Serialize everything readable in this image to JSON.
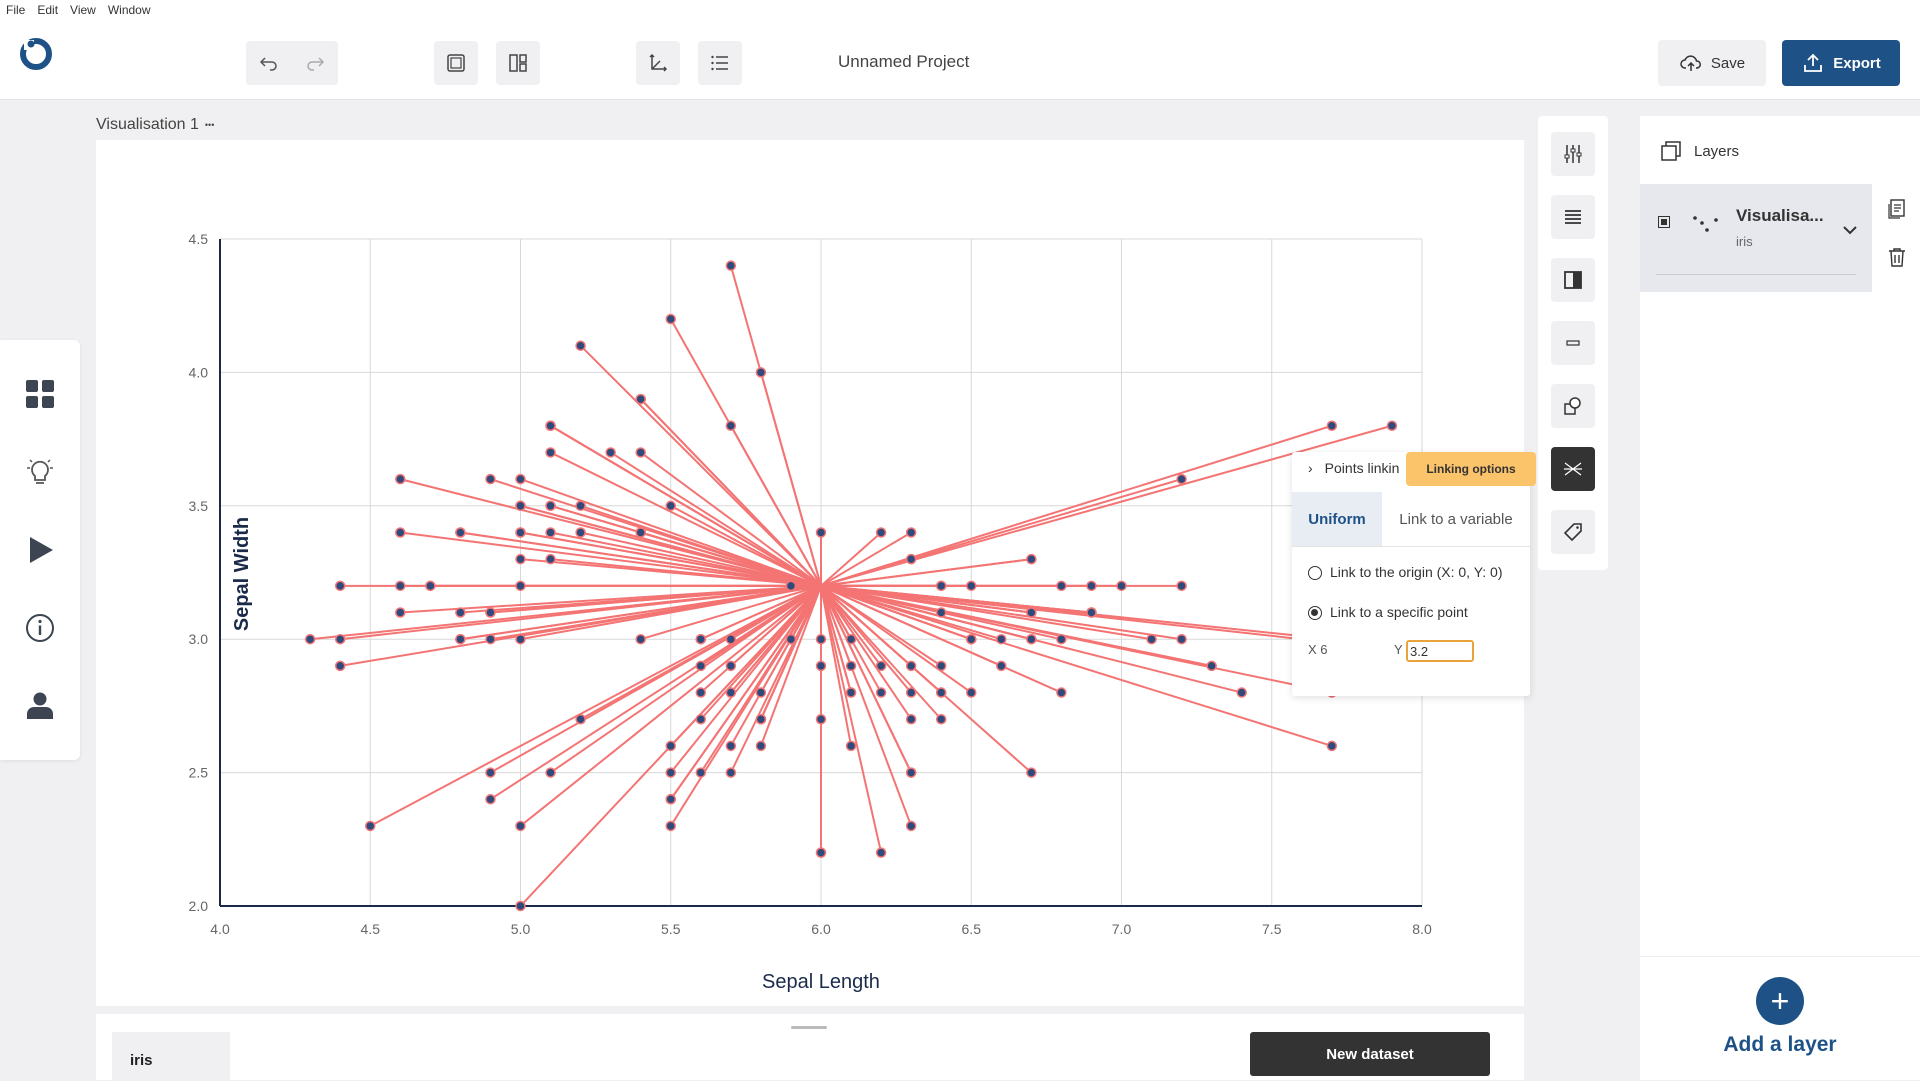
{
  "menu": [
    "File",
    "Edit",
    "View",
    "Window"
  ],
  "header": {
    "project_title": "Unnamed Project",
    "save_label": "Save",
    "export_label": "Export"
  },
  "visualisation": {
    "label": "Visualisation 1",
    "menu_dots": "•••"
  },
  "chart_data": {
    "type": "scatter",
    "xlabel": "Sepal Length",
    "ylabel": "Sepal Width",
    "xlim": [
      4.0,
      8.0
    ],
    "ylim": [
      2.0,
      4.5
    ],
    "xticks": [
      "4.0",
      "4.5",
      "5.0",
      "5.5",
      "6.0",
      "6.5",
      "7.0",
      "7.5",
      "8.0"
    ],
    "yticks": [
      "2.0",
      "2.5",
      "3.0",
      "3.5",
      "4.0",
      "4.5"
    ],
    "link_point": [
      6,
      3.2
    ],
    "point_color": "#2f4a7c",
    "link_color": "#f47474",
    "grid": true,
    "x": [
      5.1,
      4.9,
      4.7,
      4.6,
      5.0,
      5.4,
      4.6,
      5.0,
      4.4,
      4.9,
      5.4,
      4.8,
      4.8,
      4.3,
      5.8,
      5.7,
      5.4,
      5.1,
      5.7,
      5.1,
      5.4,
      5.1,
      4.6,
      5.1,
      4.8,
      5.0,
      5.0,
      5.2,
      5.2,
      4.7,
      4.8,
      5.4,
      5.2,
      5.5,
      4.9,
      5.0,
      5.5,
      4.9,
      4.4,
      5.1,
      5.0,
      4.5,
      4.4,
      5.0,
      5.1,
      4.8,
      5.1,
      4.6,
      5.3,
      5.0,
      7.0,
      6.4,
      6.9,
      5.5,
      6.5,
      5.7,
      6.3,
      4.9,
      6.6,
      5.2,
      5.0,
      5.9,
      6.0,
      6.1,
      5.6,
      6.7,
      5.6,
      5.8,
      6.2,
      5.6,
      5.9,
      6.1,
      6.3,
      6.1,
      6.4,
      6.6,
      6.8,
      6.7,
      6.0,
      5.7,
      5.5,
      5.5,
      5.8,
      6.0,
      5.4,
      6.0,
      6.7,
      6.3,
      5.6,
      5.5,
      5.5,
      6.1,
      5.8,
      5.0,
      5.6,
      5.7,
      5.7,
      6.2,
      5.1,
      5.7,
      6.3,
      5.8,
      7.1,
      6.3,
      6.5,
      7.6,
      4.9,
      7.3,
      6.7,
      7.2,
      6.5,
      6.4,
      6.8,
      5.7,
      5.8,
      6.4,
      6.5,
      7.7,
      7.7,
      6.0,
      6.9,
      5.6,
      7.7,
      6.3,
      6.7,
      7.2,
      6.2,
      6.1,
      6.4,
      7.2,
      7.4,
      7.9,
      6.4,
      6.3,
      6.1,
      7.7,
      6.3,
      6.4,
      6.0,
      6.9,
      6.7,
      6.9,
      5.8,
      6.8,
      6.7,
      6.7,
      6.3,
      6.5,
      6.2,
      5.9
    ],
    "y": [
      3.5,
      3.0,
      3.2,
      3.1,
      3.6,
      3.9,
      3.4,
      3.4,
      2.9,
      3.1,
      3.7,
      3.4,
      3.0,
      3.0,
      4.0,
      4.4,
      3.9,
      3.5,
      3.8,
      3.8,
      3.4,
      3.7,
      3.6,
      3.3,
      3.4,
      3.0,
      3.4,
      3.5,
      3.4,
      3.2,
      3.1,
      3.4,
      4.1,
      4.2,
      3.1,
      3.2,
      3.5,
      3.6,
      3.0,
      3.4,
      3.5,
      2.3,
      3.2,
      3.5,
      3.8,
      3.0,
      3.8,
      3.2,
      3.7,
      3.3,
      3.2,
      3.2,
      3.1,
      2.3,
      2.8,
      2.8,
      3.3,
      2.4,
      2.9,
      2.7,
      2.0,
      3.0,
      2.2,
      2.9,
      2.9,
      3.1,
      3.0,
      2.7,
      2.2,
      2.5,
      3.2,
      2.8,
      2.5,
      2.8,
      2.9,
      3.0,
      2.8,
      3.0,
      2.9,
      2.6,
      2.4,
      2.4,
      2.7,
      2.7,
      3.0,
      3.4,
      3.1,
      2.3,
      3.0,
      2.5,
      2.6,
      3.0,
      2.6,
      2.3,
      2.7,
      3.0,
      2.9,
      2.9,
      2.5,
      2.8,
      3.3,
      2.7,
      3.0,
      2.9,
      3.0,
      3.0,
      2.5,
      2.9,
      2.5,
      3.6,
      3.2,
      2.7,
      3.0,
      2.5,
      2.8,
      3.2,
      3.0,
      3.8,
      2.6,
      2.2,
      3.2,
      2.8,
      2.8,
      2.7,
      3.3,
      3.2,
      2.8,
      3.0,
      2.8,
      3.0,
      2.8,
      3.8,
      2.8,
      2.8,
      2.6,
      3.0,
      3.4,
      3.1,
      3.0,
      3.1,
      3.1,
      3.1,
      2.7,
      3.2,
      3.3,
      3.0,
      2.5,
      3.0,
      3.4,
      3.0
    ]
  },
  "right_tools": [
    "sliders-icon",
    "align-icon",
    "contrast-icon",
    "minus-box-icon",
    "shapes-icon",
    "link-points-icon",
    "tag-icon"
  ],
  "tooltip": "Linking options",
  "popup": {
    "header": "Points linkin",
    "tab_uniform": "Uniform",
    "tab_variable": "Link to a variable",
    "option_origin": "Link to the origin (X: 0, Y: 0)",
    "option_point": "Link to a specific point",
    "x_label": "X",
    "x_value": "6",
    "y_label": "Y",
    "y_value": "3.2"
  },
  "layers": {
    "title": "Layers",
    "layer_name": "Visualisa...",
    "layer_dataset": "iris",
    "add_label": "Add a layer"
  },
  "bottom": {
    "dataset_tab": "iris",
    "new_dataset": "New dataset"
  }
}
